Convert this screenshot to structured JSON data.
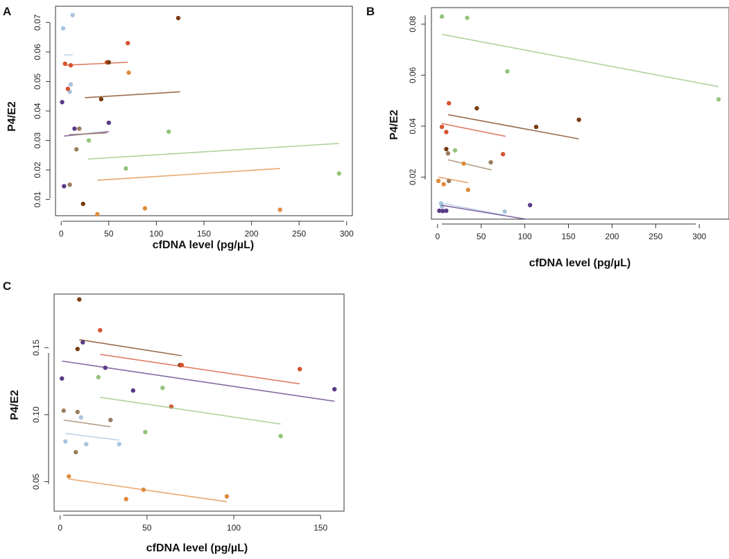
{
  "chart_data": [
    {
      "panel": "A",
      "type": "scatter",
      "xlabel": "cfDNA level (pg/µL)",
      "ylabel": "P4/E2",
      "xlim": [
        -6,
        306
      ],
      "ylim": [
        0.0045,
        0.0755
      ],
      "xticks": [
        0,
        50,
        100,
        150,
        200,
        250,
        300
      ],
      "yticks": [
        0.01,
        0.02,
        0.03,
        0.04,
        0.05,
        0.06,
        0.07
      ],
      "xtick_labels": [
        "0",
        "50",
        "100",
        "150",
        "200",
        "250",
        "300"
      ],
      "ytick_labels": [
        "0.01",
        "0.02",
        "0.03",
        "0.04",
        "0.05",
        "0.06",
        "0.07"
      ],
      "series": [
        {
          "name": "light-blue",
          "color": "#a9c4df",
          "points": [
            [
              2,
              0.068
            ],
            [
              12,
              0.0725
            ],
            [
              10,
              0.049
            ],
            [
              9,
              0.0465
            ]
          ],
          "fit": [
            [
              3,
              0.059
            ],
            [
              12,
              0.059
            ]
          ]
        },
        {
          "name": "red-orange",
          "color": "#d4532f",
          "points": [
            [
              4,
              0.056
            ],
            [
              10,
              0.0555
            ],
            [
              7,
              0.0475
            ],
            [
              70,
              0.063
            ],
            [
              48,
              0.0565
            ]
          ],
          "fit": [
            [
              4,
              0.0555
            ],
            [
              70,
              0.0565
            ]
          ]
        },
        {
          "name": "dark-brown",
          "color": "#7a3b12",
          "points": [
            [
              123,
              0.0715
            ],
            [
              50,
              0.0565
            ],
            [
              42,
              0.044
            ],
            [
              23,
              0.0085
            ]
          ],
          "fit": [
            [
              25,
              0.0445
            ],
            [
              125,
              0.0465
            ]
          ]
        },
        {
          "name": "orange",
          "color": "#e08a3c",
          "points": [
            [
              71,
              0.053
            ],
            [
              88,
              0.007
            ],
            [
              230,
              0.0065
            ],
            [
              38,
              0.005
            ]
          ],
          "fit": [
            [
              38,
              0.0165
            ],
            [
              230,
              0.0205
            ]
          ]
        },
        {
          "name": "purple",
          "color": "#5a3a85",
          "points": [
            [
              1,
              0.043
            ],
            [
              14,
              0.034
            ],
            [
              50,
              0.036
            ],
            [
              3,
              0.0145
            ]
          ],
          "fit": [
            [
              3,
              0.0315
            ],
            [
              50,
              0.033
            ]
          ]
        },
        {
          "name": "taupe",
          "color": "#9a7d5f",
          "points": [
            [
              19,
              0.034
            ],
            [
              16,
              0.027
            ],
            [
              9,
              0.015
            ]
          ],
          "fit": [
            [
              8,
              0.032
            ],
            [
              48,
              0.0325
            ]
          ]
        },
        {
          "name": "green",
          "color": "#94c37b",
          "points": [
            [
              29,
              0.03
            ],
            [
              113,
              0.033
            ],
            [
              68,
              0.0205
            ],
            [
              292,
              0.0188
            ]
          ],
          "fit": [
            [
              28,
              0.0237
            ],
            [
              292,
              0.029
            ]
          ]
        }
      ]
    },
    {
      "panel": "B",
      "type": "scatter",
      "xlabel": "cfDNA level (pg/µL)",
      "ylabel": "P4/E2",
      "xlim": [
        -7,
        334
      ],
      "ylim": [
        0.0035,
        0.0865
      ],
      "xticks": [
        0,
        50,
        100,
        150,
        200,
        250,
        300
      ],
      "yticks": [
        0.02,
        0.04,
        0.06,
        0.08
      ],
      "xtick_labels": [
        "0",
        "50",
        "100",
        "150",
        "200",
        "250",
        "300"
      ],
      "ytick_labels": [
        "0.02",
        "0.04",
        "0.06",
        "0.08"
      ],
      "series": [
        {
          "name": "green",
          "color": "#94c37b",
          "points": [
            [
              5,
              0.083
            ],
            [
              34,
              0.0825
            ],
            [
              80,
              0.0615
            ],
            [
              322,
              0.0505
            ],
            [
              20,
              0.0305
            ]
          ],
          "fit": [
            [
              5,
              0.076
            ],
            [
              322,
              0.0555
            ]
          ]
        },
        {
          "name": "red-orange",
          "color": "#d4532f",
          "points": [
            [
              13,
              0.049
            ],
            [
              5,
              0.0397
            ],
            [
              10,
              0.0377
            ],
            [
              75,
              0.029
            ]
          ],
          "fit": [
            [
              5,
              0.041
            ],
            [
              78,
              0.036
            ]
          ]
        },
        {
          "name": "dark-brown",
          "color": "#7a3b12",
          "points": [
            [
              45,
              0.047
            ],
            [
              113,
              0.0397
            ],
            [
              162,
              0.0425
            ],
            [
              10,
              0.031
            ]
          ],
          "fit": [
            [
              12,
              0.0445
            ],
            [
              162,
              0.035
            ]
          ]
        },
        {
          "name": "taupe",
          "color": "#9a7d5f",
          "points": [
            [
              12,
              0.0293
            ],
            [
              61,
              0.0258
            ],
            [
              13,
              0.0185
            ]
          ],
          "fit": [
            [
              12,
              0.0268
            ],
            [
              62,
              0.0228
            ]
          ]
        },
        {
          "name": "orange",
          "color": "#e08a3c",
          "points": [
            [
              30,
              0.0253
            ],
            [
              1,
              0.0185
            ],
            [
              7,
              0.0172
            ],
            [
              35,
              0.015
            ]
          ],
          "fit": [
            [
              1,
              0.02
            ],
            [
              35,
              0.0178
            ]
          ]
        },
        {
          "name": "light-blue",
          "color": "#a9c4df",
          "points": [
            [
              4,
              0.0097
            ],
            [
              5,
              0.0085
            ],
            [
              77,
              0.0065
            ]
          ],
          "fit": [
            [
              5,
              0.0098
            ],
            [
              77,
              0.005
            ]
          ]
        },
        {
          "name": "purple",
          "color": "#5a3a85",
          "points": [
            [
              2,
              0.0068
            ],
            [
              6,
              0.0067
            ],
            [
              10,
              0.0068
            ],
            [
              106,
              0.009
            ]
          ],
          "fit": [
            [
              4,
              0.009
            ],
            [
              110,
              0.003
            ]
          ]
        }
      ]
    },
    {
      "panel": "C",
      "type": "scatter",
      "xlabel": "cfDNA level (pg/µL)",
      "ylabel": "P4/E2",
      "xlim": [
        -3.5,
        163.5
      ],
      "ylim": [
        0.028,
        0.19
      ],
      "xticks": [
        0,
        50,
        100,
        150
      ],
      "yticks": [
        0.05,
        0.1,
        0.15
      ],
      "xtick_labels": [
        "0",
        "50",
        "100",
        "150"
      ],
      "ytick_labels": [
        "0.05",
        "0.10",
        "0.15"
      ],
      "series": [
        {
          "name": "dark-brown",
          "color": "#7a3b12",
          "points": [
            [
              11,
              0.186
            ],
            [
              10,
              0.149
            ],
            [
              69,
              0.137
            ]
          ],
          "fit": [
            [
              11,
              0.156
            ],
            [
              70,
              0.144
            ]
          ]
        },
        {
          "name": "red-orange",
          "color": "#d4532f",
          "points": [
            [
              23,
              0.163
            ],
            [
              70,
              0.137
            ],
            [
              64,
              0.106
            ],
            [
              138,
              0.134
            ]
          ],
          "fit": [
            [
              23,
              0.145
            ],
            [
              138,
              0.123
            ]
          ]
        },
        {
          "name": "purple",
          "color": "#5a3a85",
          "points": [
            [
              13,
              0.154
            ],
            [
              26,
              0.135
            ],
            [
              1,
              0.127
            ],
            [
              42,
              0.118
            ],
            [
              158,
              0.119
            ]
          ],
          "fit": [
            [
              1,
              0.14
            ],
            [
              158,
              0.11
            ]
          ]
        },
        {
          "name": "green",
          "color": "#94c37b",
          "points": [
            [
              22,
              0.128
            ],
            [
              59,
              0.12
            ],
            [
              49,
              0.087
            ],
            [
              127,
              0.084
            ]
          ],
          "fit": [
            [
              23,
              0.113
            ],
            [
              127,
              0.093
            ]
          ]
        },
        {
          "name": "taupe",
          "color": "#9a7d5f",
          "points": [
            [
              2,
              0.103
            ],
            [
              10,
              0.102
            ],
            [
              29,
              0.096
            ],
            [
              9,
              0.072
            ]
          ],
          "fit": [
            [
              2,
              0.096
            ],
            [
              29,
              0.091
            ]
          ]
        },
        {
          "name": "light-blue",
          "color": "#a9c4df",
          "points": [
            [
              12,
              0.098
            ],
            [
              3,
              0.08
            ],
            [
              15,
              0.078
            ],
            [
              34,
              0.078
            ]
          ],
          "fit": [
            [
              3,
              0.086
            ],
            [
              34,
              0.081
            ]
          ]
        },
        {
          "name": "orange",
          "color": "#e08a3c",
          "points": [
            [
              5,
              0.054
            ],
            [
              48,
              0.044
            ],
            [
              38,
              0.037
            ],
            [
              96,
              0.039
            ]
          ],
          "fit": [
            [
              5,
              0.052
            ],
            [
              96,
              0.035
            ]
          ]
        }
      ]
    }
  ]
}
